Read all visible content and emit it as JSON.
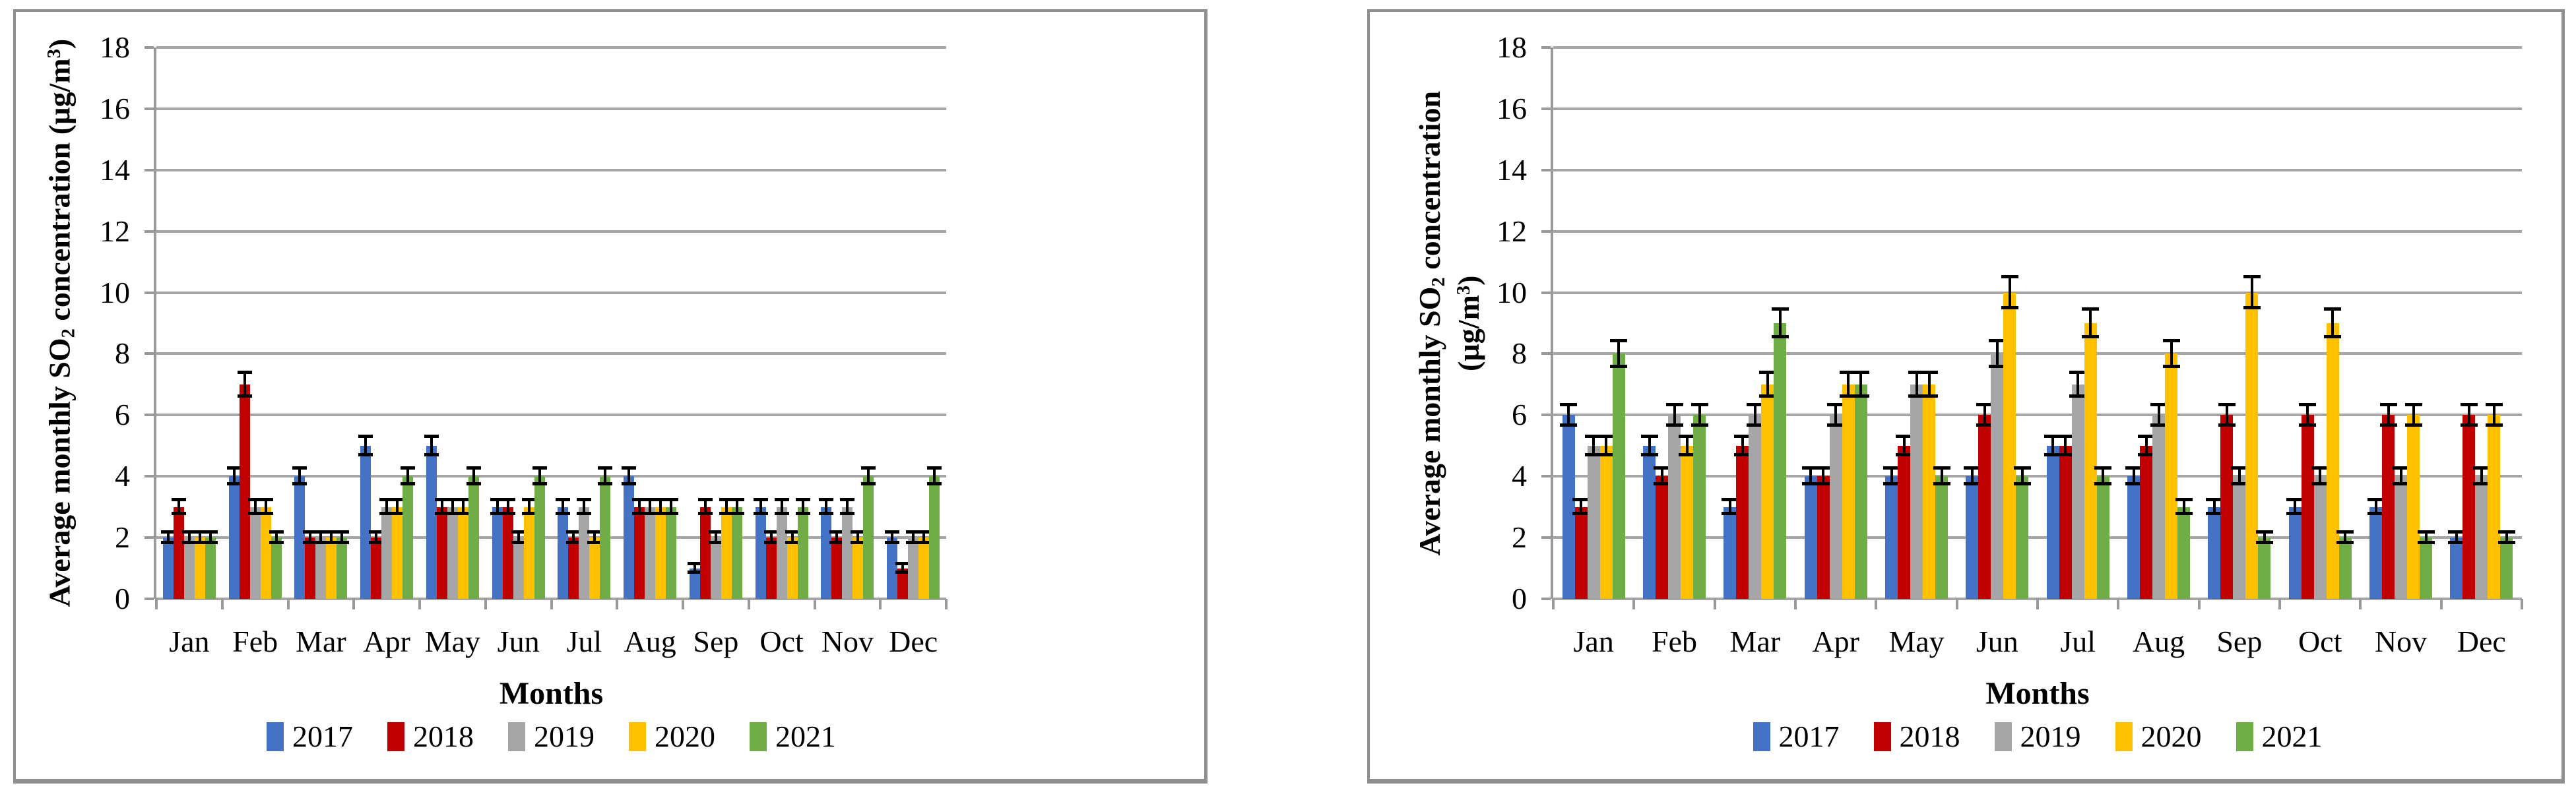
{
  "chart_data": [
    {
      "type": "bar",
      "panel": "left",
      "title": "",
      "xlabel": "Months",
      "ylabel": "Average monthly SO₂ concentration (µg/m³)",
      "ylabel_parts": [
        {
          "t": "Average monthly SO"
        },
        {
          "t": "2",
          "pos": "sub"
        },
        {
          "t": " concentration (µg/m"
        },
        {
          "t": "3",
          "pos": "sup"
        },
        {
          "t": ")"
        }
      ],
      "ylim": [
        0,
        18
      ],
      "ytick_step": 2,
      "grid": "horizontal",
      "grid_color": "#a6a6a6",
      "error_bar_color": "#000000",
      "legend_position": "bottom",
      "categories": [
        "Jan",
        "Feb",
        "Mar",
        "Apr",
        "May",
        "Jun",
        "Jul",
        "Aug",
        "Sep",
        "Oct",
        "Nov",
        "Dec"
      ],
      "series": [
        {
          "name": "2017",
          "color": "#4472C4",
          "values": [
            2,
            4,
            4,
            5,
            5,
            3,
            3,
            4,
            1,
            3,
            3,
            2
          ],
          "errors": [
            0.18,
            0.26,
            0.26,
            0.3,
            0.3,
            0.22,
            0.22,
            0.26,
            0.14,
            0.22,
            0.22,
            0.18
          ]
        },
        {
          "name": "2018",
          "color": "#C00000",
          "values": [
            3,
            7,
            2,
            2,
            3,
            3,
            2,
            3,
            3,
            2,
            2,
            1
          ],
          "errors": [
            0.22,
            0.38,
            0.18,
            0.18,
            0.22,
            0.22,
            0.18,
            0.22,
            0.22,
            0.18,
            0.18,
            0.14
          ]
        },
        {
          "name": "2019",
          "color": "#A6A6A6",
          "values": [
            2,
            3,
            2,
            3,
            3,
            2,
            3,
            3,
            2,
            3,
            3,
            2
          ],
          "errors": [
            0.18,
            0.22,
            0.18,
            0.22,
            0.22,
            0.18,
            0.22,
            0.22,
            0.18,
            0.22,
            0.22,
            0.18
          ]
        },
        {
          "name": "2020",
          "color": "#FFC000",
          "values": [
            2,
            3,
            2,
            3,
            3,
            3,
            2,
            3,
            3,
            2,
            2,
            2
          ],
          "errors": [
            0.18,
            0.22,
            0.18,
            0.22,
            0.22,
            0.22,
            0.18,
            0.22,
            0.22,
            0.18,
            0.18,
            0.18
          ]
        },
        {
          "name": "2021",
          "color": "#70AD47",
          "values": [
            2,
            2,
            2,
            4,
            4,
            4,
            4,
            3,
            3,
            3,
            4,
            4
          ],
          "errors": [
            0.18,
            0.18,
            0.18,
            0.26,
            0.26,
            0.26,
            0.26,
            0.22,
            0.22,
            0.22,
            0.26,
            0.26
          ]
        }
      ]
    },
    {
      "type": "bar",
      "panel": "right",
      "title": "",
      "xlabel": "Months",
      "ylabel": "Average monthly SO₂ concentration (µg/m³)",
      "ylabel_line1_parts": [
        {
          "t": "Average monthly SO"
        },
        {
          "t": "2",
          "pos": "sub"
        },
        {
          "t": " concentration"
        }
      ],
      "ylabel_line2_parts": [
        {
          "t": "(µg/m"
        },
        {
          "t": "3",
          "pos": "sup"
        },
        {
          "t": ")"
        }
      ],
      "ylim": [
        0,
        18
      ],
      "ytick_step": 2,
      "grid": "horizontal",
      "grid_color": "#a6a6a6",
      "error_bar_color": "#000000",
      "legend_position": "bottom",
      "categories": [
        "Jan",
        "Feb",
        "Mar",
        "Apr",
        "May",
        "Jun",
        "Jul",
        "Aug",
        "Sep",
        "Oct",
        "Nov",
        "Dec"
      ],
      "series": [
        {
          "name": "2017",
          "color": "#4472C4",
          "values": [
            6,
            5,
            3,
            4,
            4,
            4,
            5,
            4,
            3,
            3,
            3,
            2
          ],
          "errors": [
            0.34,
            0.3,
            0.22,
            0.26,
            0.26,
            0.26,
            0.3,
            0.26,
            0.22,
            0.22,
            0.22,
            0.18
          ]
        },
        {
          "name": "2018",
          "color": "#C00000",
          "values": [
            3,
            4,
            5,
            4,
            5,
            6,
            5,
            5,
            6,
            6,
            6,
            6
          ],
          "errors": [
            0.22,
            0.26,
            0.3,
            0.26,
            0.3,
            0.34,
            0.3,
            0.3,
            0.34,
            0.34,
            0.34,
            0.34
          ]
        },
        {
          "name": "2019",
          "color": "#A6A6A6",
          "values": [
            5,
            6,
            6,
            6,
            7,
            8,
            7,
            6,
            4,
            4,
            4,
            4
          ],
          "errors": [
            0.3,
            0.34,
            0.34,
            0.34,
            0.38,
            0.42,
            0.38,
            0.34,
            0.26,
            0.26,
            0.26,
            0.26
          ]
        },
        {
          "name": "2020",
          "color": "#FFC000",
          "values": [
            5,
            5,
            7,
            7,
            7,
            10,
            9,
            8,
            10,
            9,
            6,
            6
          ],
          "errors": [
            0.3,
            0.3,
            0.38,
            0.38,
            0.38,
            0.5,
            0.46,
            0.42,
            0.5,
            0.46,
            0.34,
            0.34
          ]
        },
        {
          "name": "2021",
          "color": "#70AD47",
          "values": [
            8,
            6,
            9,
            7,
            4,
            4,
            4,
            3,
            2,
            2,
            2,
            2
          ],
          "errors": [
            0.42,
            0.34,
            0.46,
            0.38,
            0.26,
            0.26,
            0.26,
            0.22,
            0.18,
            0.18,
            0.18,
            0.18
          ]
        }
      ]
    }
  ]
}
